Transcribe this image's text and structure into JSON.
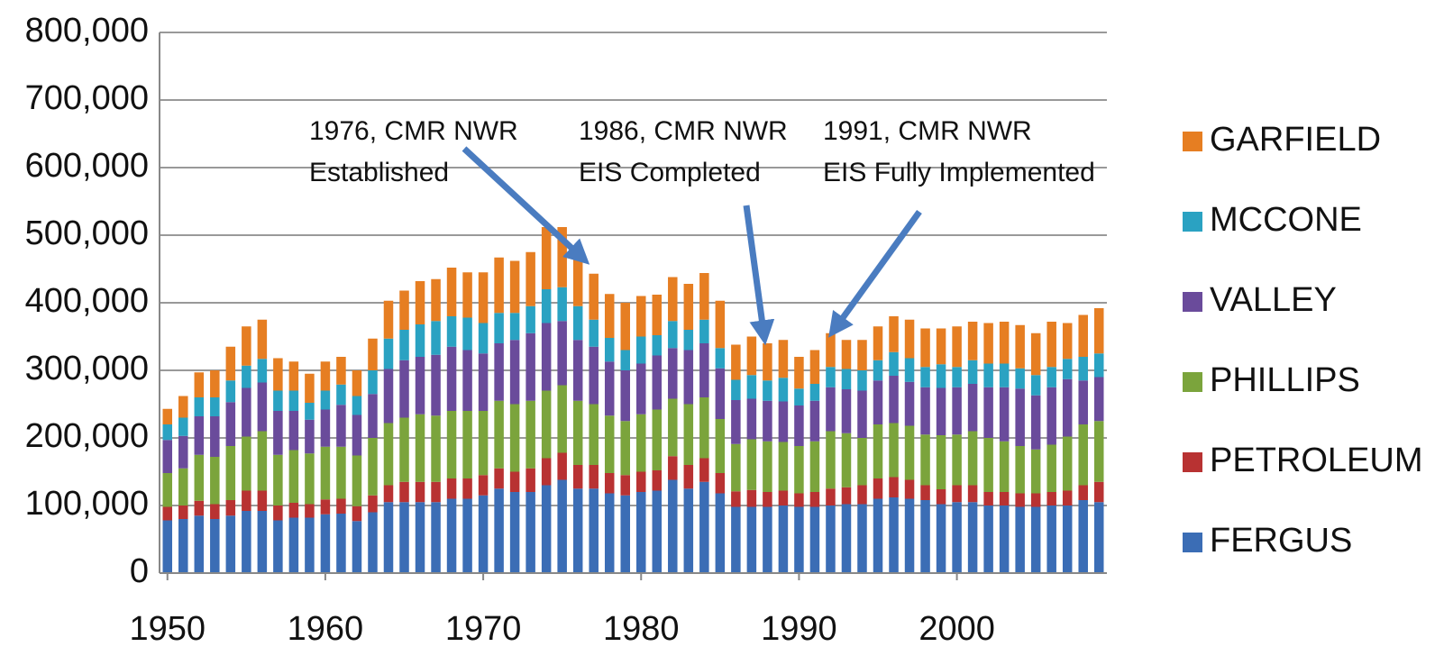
{
  "chart_data": {
    "type": "stacked_bar",
    "x": [
      1950,
      1951,
      1952,
      1953,
      1954,
      1955,
      1956,
      1957,
      1958,
      1959,
      1960,
      1961,
      1962,
      1963,
      1964,
      1965,
      1966,
      1967,
      1968,
      1969,
      1970,
      1971,
      1972,
      1973,
      1974,
      1975,
      1976,
      1977,
      1978,
      1979,
      1980,
      1981,
      1982,
      1983,
      1984,
      1985,
      1986,
      1987,
      1988,
      1989,
      1990,
      1991,
      1992,
      1993,
      1994,
      1995,
      1996,
      1997,
      1998,
      1999,
      2000,
      2001,
      2002,
      2003,
      2004,
      2005,
      2006,
      2007,
      2008,
      2009
    ],
    "xlim": [
      1949.5,
      2009.5
    ],
    "xticks": [
      1950,
      1960,
      1970,
      1980,
      1990,
      2000
    ],
    "ylim": [
      0,
      800000
    ],
    "yticks": [
      0,
      {
        "value": 100000,
        "label": "100,000"
      },
      {
        "value": 200000,
        "label": "200,000"
      },
      {
        "value": 300000,
        "label": "300,000"
      },
      {
        "value": 400000,
        "label": "400,000"
      },
      {
        "value": 500000,
        "label": "500,000"
      },
      {
        "value": 600000,
        "label": "600,000"
      },
      {
        "value": 700000,
        "label": "700,000"
      },
      {
        "value": 800000,
        "label": "800,000"
      }
    ],
    "grid": true,
    "legend": "right",
    "series": [
      {
        "name": "FERGUS",
        "color": "#3b6db5",
        "values": [
          78000,
          80000,
          85000,
          80000,
          85000,
          92000,
          92000,
          78000,
          82000,
          82000,
          87000,
          88000,
          77000,
          90000,
          105000,
          105000,
          105000,
          105000,
          110000,
          110000,
          115000,
          125000,
          120000,
          120000,
          130000,
          138000,
          125000,
          125000,
          118000,
          115000,
          120000,
          122000,
          138000,
          125000,
          135000,
          118000,
          98000,
          98000,
          98000,
          100000,
          98000,
          98000,
          100000,
          102000,
          102000,
          110000,
          112000,
          110000,
          108000,
          102000,
          105000,
          105000,
          100000,
          100000,
          98000,
          98000,
          100000,
          100000,
          108000,
          105000
        ]
      },
      {
        "name": "PETROLEUM",
        "color": "#b83232",
        "values": [
          20000,
          20000,
          22000,
          22000,
          23000,
          30000,
          30000,
          22000,
          22000,
          20000,
          22000,
          22000,
          22000,
          25000,
          25000,
          30000,
          30000,
          30000,
          30000,
          30000,
          30000,
          30000,
          30000,
          35000,
          40000,
          40000,
          35000,
          35000,
          30000,
          30000,
          30000,
          30000,
          35000,
          35000,
          35000,
          30000,
          23000,
          25000,
          22000,
          22000,
          20000,
          22000,
          25000,
          25000,
          28000,
          30000,
          30000,
          28000,
          22000,
          22000,
          25000,
          25000,
          20000,
          20000,
          20000,
          20000,
          20000,
          22000,
          22000,
          30000
        ]
      },
      {
        "name": "PHILLIPS",
        "color": "#7ba43c",
        "values": [
          50000,
          55000,
          68000,
          70000,
          80000,
          80000,
          88000,
          75000,
          78000,
          75000,
          78000,
          77000,
          75000,
          85000,
          92000,
          95000,
          100000,
          98000,
          100000,
          100000,
          95000,
          100000,
          100000,
          100000,
          100000,
          100000,
          95000,
          90000,
          85000,
          80000,
          85000,
          90000,
          85000,
          90000,
          90000,
          80000,
          70000,
          75000,
          75000,
          72000,
          70000,
          75000,
          85000,
          80000,
          70000,
          80000,
          80000,
          80000,
          75000,
          80000,
          75000,
          80000,
          80000,
          75000,
          70000,
          65000,
          70000,
          80000,
          90000,
          90000
        ]
      },
      {
        "name": "VALLEY",
        "color": "#6a4b9b",
        "values": [
          49000,
          48000,
          57000,
          60000,
          65000,
          72000,
          72000,
          65000,
          58000,
          50000,
          55000,
          62000,
          60000,
          65000,
          80000,
          85000,
          85000,
          90000,
          95000,
          90000,
          85000,
          85000,
          95000,
          100000,
          100000,
          95000,
          90000,
          85000,
          80000,
          75000,
          75000,
          80000,
          75000,
          80000,
          80000,
          75000,
          65000,
          60000,
          60000,
          60000,
          60000,
          60000,
          65000,
          65000,
          70000,
          65000,
          70000,
          65000,
          70000,
          70000,
          70000,
          70000,
          75000,
          80000,
          85000,
          80000,
          85000,
          85000,
          65000,
          65000
        ]
      },
      {
        "name": "MCCONE",
        "color": "#2aa2c2",
        "values": [
          23000,
          27000,
          28000,
          28000,
          32000,
          33000,
          35000,
          30000,
          30000,
          25000,
          28000,
          30000,
          28000,
          35000,
          45000,
          45000,
          48000,
          50000,
          45000,
          48000,
          45000,
          45000,
          40000,
          40000,
          50000,
          50000,
          50000,
          40000,
          35000,
          30000,
          40000,
          30000,
          40000,
          30000,
          35000,
          30000,
          30000,
          35000,
          30000,
          35000,
          25000,
          25000,
          30000,
          30000,
          30000,
          30000,
          35000,
          35000,
          30000,
          35000,
          30000,
          35000,
          35000,
          35000,
          30000,
          30000,
          30000,
          30000,
          35000,
          35000
        ]
      },
      {
        "name": "GARFIELD",
        "color": "#e67e22",
        "values": [
          23000,
          32000,
          37000,
          40000,
          50000,
          58000,
          58000,
          48000,
          43000,
          43000,
          43000,
          41000,
          38000,
          47000,
          56000,
          58000,
          64000,
          62000,
          72000,
          67000,
          75000,
          82000,
          77000,
          80000,
          92000,
          89000,
          85000,
          68000,
          65000,
          70000,
          60000,
          60000,
          65000,
          68000,
          69000,
          70000,
          52000,
          57000,
          55000,
          56000,
          47000,
          50000,
          50000,
          43000,
          45000,
          50000,
          53000,
          57000,
          57000,
          53000,
          60000,
          57000,
          60000,
          62000,
          64000,
          62000,
          67000,
          53000,
          62000,
          67000
        ]
      }
    ],
    "annotations": [
      {
        "text": [
          "1976, CMR NWR",
          "Established"
        ]
      },
      {
        "text": [
          "1986, CMR NWR",
          "EIS Completed"
        ]
      },
      {
        "text": [
          "1991, CMR NWR",
          "EIS Fully Implemented"
        ]
      }
    ]
  }
}
